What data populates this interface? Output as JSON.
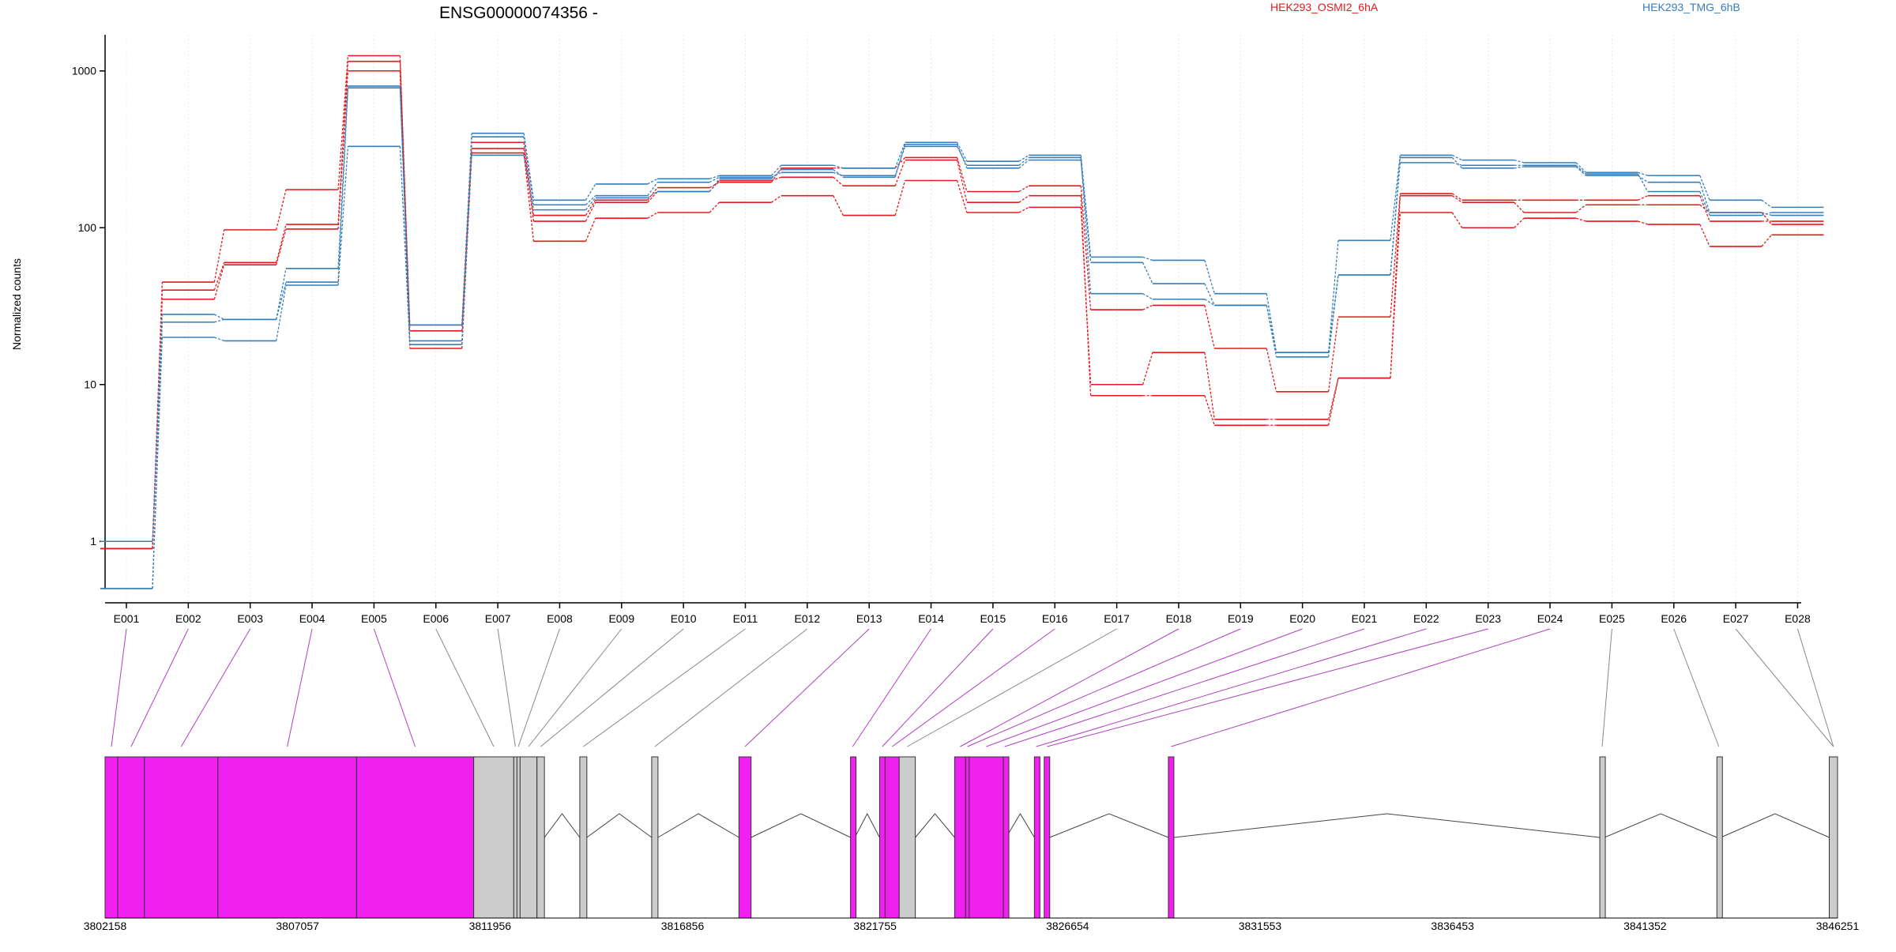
{
  "chart_data": {
    "type": "line",
    "title": "ENSG00000074356 -",
    "ylabel": "Normalized counts",
    "yscale": "log",
    "ylim": [
      0.5,
      1700
    ],
    "y_ticks": [
      "1",
      "10",
      "100",
      "1000"
    ],
    "y_tick_values": [
      1,
      10,
      100,
      1000
    ],
    "legend": [
      {
        "name": "HEK293_OSMI2_6hA",
        "color": "#e31a1c"
      },
      {
        "name": "HEK293_TMG_6hB",
        "color": "#377eb8"
      }
    ],
    "categories": [
      "E001",
      "E002",
      "E003",
      "E004",
      "E005",
      "E006",
      "E007",
      "E008",
      "E009",
      "E010",
      "E011",
      "E012",
      "E013",
      "E014",
      "E015",
      "E016",
      "E017",
      "E018",
      "E019",
      "E020",
      "E021",
      "E022",
      "E023",
      "E024",
      "E025",
      "E026",
      "E027",
      "E028"
    ],
    "series": [
      {
        "group": "HEK293_OSMI2_6hA",
        "color": "#e31a1c",
        "values": [
          0.9,
          45,
          97,
          175,
          1250,
          24,
          350,
          120,
          150,
          180,
          195,
          240,
          240,
          280,
          170,
          185,
          30,
          32,
          17,
          9,
          27,
          165,
          150,
          150,
          150,
          160,
          110,
          110
        ]
      },
      {
        "group": "HEK293_OSMI2_6hA",
        "color": "#e31a1c",
        "values": [
          0.9,
          35,
          58,
          98,
          1000,
          17,
          300,
          82,
          115,
          125,
          145,
          160,
          120,
          200,
          125,
          135,
          10,
          16,
          6,
          6,
          11,
          125,
          100,
          115,
          110,
          105,
          76,
          90
        ]
      },
      {
        "group": "HEK293_OSMI2_6hA",
        "color": "#e31a1c",
        "values": [
          0.9,
          40,
          60,
          105,
          1150,
          22,
          320,
          110,
          145,
          170,
          200,
          210,
          185,
          270,
          145,
          160,
          8.5,
          8.5,
          5.5,
          5.5,
          11,
          160,
          145,
          125,
          140,
          140,
          125,
          105
        ]
      },
      {
        "group": "HEK293_TMG_6hB",
        "color": "#377eb8",
        "values": [
          1,
          28,
          26,
          55,
          800,
          24,
          400,
          150,
          190,
          205,
          215,
          250,
          240,
          350,
          265,
          290,
          65,
          62,
          38,
          16,
          83,
          290,
          270,
          260,
          225,
          215,
          150,
          135
        ]
      },
      {
        "group": "HEK293_TMG_6hB",
        "color": "#377eb8",
        "values": [
          0.5,
          20,
          19,
          43,
          330,
          18,
          290,
          130,
          155,
          170,
          205,
          235,
          210,
          340,
          240,
          270,
          60,
          44,
          32,
          15,
          50,
          280,
          240,
          245,
          215,
          195,
          125,
          120
        ]
      },
      {
        "group": "HEK293_TMG_6hB",
        "color": "#377eb8",
        "values": [
          0.5,
          25,
          26,
          45,
          780,
          19,
          380,
          140,
          160,
          195,
          210,
          225,
          215,
          330,
          250,
          280,
          38,
          35,
          32,
          16,
          50,
          260,
          250,
          250,
          220,
          170,
          120,
          125
        ]
      }
    ],
    "genomic_axis": {
      "ticks": [
        "3802158",
        "3807057",
        "3811956",
        "3816856",
        "3821755",
        "3826654",
        "3831553",
        "3836453",
        "3841352",
        "3846251"
      ],
      "tick_values": [
        3802158,
        3807057,
        3811956,
        3816856,
        3821755,
        3826654,
        3831553,
        3836453,
        3841352,
        3846251
      ],
      "range": [
        3802158,
        3846251
      ]
    },
    "exons": [
      {
        "id": "E001",
        "start": 3802158,
        "end": 3802480,
        "highlight": true
      },
      {
        "id": "E002",
        "start": 3802480,
        "end": 3803160,
        "highlight": true
      },
      {
        "id": "E003",
        "start": 3803160,
        "end": 3805030,
        "highlight": true
      },
      {
        "id": "E004",
        "start": 3805030,
        "end": 3808560,
        "highlight": true
      },
      {
        "id": "E005",
        "start": 3808560,
        "end": 3811540,
        "highlight": true
      },
      {
        "id": "E006",
        "start": 3811540,
        "end": 3812560,
        "highlight": false
      },
      {
        "id": "E007",
        "start": 3812560,
        "end": 3812640,
        "highlight": false
      },
      {
        "id": "E008",
        "start": 3812640,
        "end": 3812710,
        "highlight": false
      },
      {
        "id": "E009",
        "start": 3812720,
        "end": 3813150,
        "highlight": false
      },
      {
        "id": "E010",
        "start": 3813150,
        "end": 3813340,
        "highlight": false
      },
      {
        "id": "E011",
        "start": 3814240,
        "end": 3814420,
        "highlight": false
      },
      {
        "id": "E012",
        "start": 3816070,
        "end": 3816230,
        "highlight": false
      },
      {
        "id": "E013",
        "start": 3818290,
        "end": 3818600,
        "highlight": true
      },
      {
        "id": "E014",
        "start": 3821130,
        "end": 3821240,
        "highlight": true
      },
      {
        "id": "E015",
        "start": 3821870,
        "end": 3822010,
        "highlight": true
      },
      {
        "id": "E016",
        "start": 3822010,
        "end": 3822370,
        "highlight": true
      },
      {
        "id": "E017",
        "start": 3822370,
        "end": 3822780,
        "highlight": false
      },
      {
        "id": "E018",
        "start": 3823780,
        "end": 3824060,
        "highlight": true
      },
      {
        "id": "E019",
        "start": 3824060,
        "end": 3824150,
        "highlight": true
      },
      {
        "id": "E020",
        "start": 3824150,
        "end": 3825020,
        "highlight": true
      },
      {
        "id": "E021",
        "start": 3825020,
        "end": 3825090,
        "highlight": true
      },
      {
        "id": "E022",
        "start": 3825810,
        "end": 3825900,
        "highlight": true
      },
      {
        "id": "E023",
        "start": 3826060,
        "end": 3826200,
        "highlight": true
      },
      {
        "id": "E024",
        "start": 3829220,
        "end": 3829360,
        "highlight": true
      },
      {
        "id": "E025",
        "start": 3840200,
        "end": 3840320,
        "highlight": false
      },
      {
        "id": "E026",
        "start": 3843180,
        "end": 3843280,
        "highlight": false
      },
      {
        "id": "E027",
        "start": 3846040,
        "end": 3846251,
        "highlight": false
      },
      {
        "id": "E028",
        "start": 3846040,
        "end": 3846251,
        "highlight": false
      }
    ],
    "highlight_color": "#f020f0",
    "exon_color": "#cccccc",
    "grid": false
  }
}
